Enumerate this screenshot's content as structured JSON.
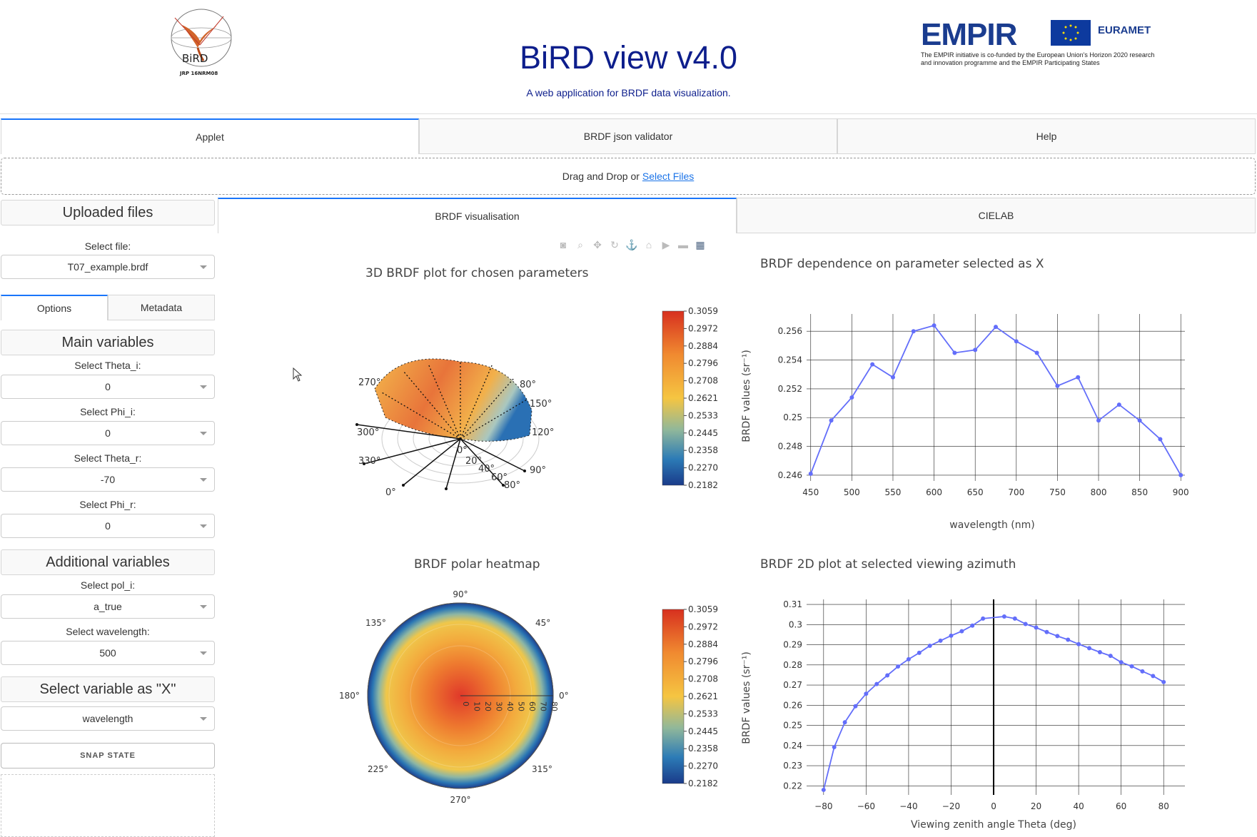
{
  "header": {
    "title": "BiRD view v4.0",
    "subtitle": "A web application for BRDF data visualization.",
    "logo_left_text": "BiRD",
    "logo_left_caption": "JRP 16NRM08",
    "logo_right_brand": "EMPIR",
    "logo_right_partner": "EURAMET",
    "logo_right_note": "The EMPIR initiative is co-funded by the European Union's Horizon 2020 research and innovation programme and the EMPIR Participating States"
  },
  "main_tabs": [
    "Applet",
    "BRDF json validator",
    "Help"
  ],
  "upload": {
    "text": "Drag and Drop or",
    "link": "Select Files"
  },
  "left": {
    "uploaded_files": "Uploaded files",
    "select_file_label": "Select file:",
    "select_file_value": "T07_example.brdf",
    "sub_tabs": [
      "Options",
      "Metadata"
    ],
    "main_variables": "Main variables",
    "theta_i_label": "Select Theta_i:",
    "theta_i_value": "0",
    "phi_i_label": "Select Phi_i:",
    "phi_i_value": "0",
    "theta_r_label": "Select Theta_r:",
    "theta_r_value": "-70",
    "phi_r_label": "Select Phi_r:",
    "phi_r_value": "0",
    "additional_variables": "Additional variables",
    "pol_i_label": "Select pol_i:",
    "pol_i_value": "a_true",
    "wavelength_label": "Select wavelength:",
    "wavelength_value": "500",
    "x_var_head": "Select variable as \"X\"",
    "x_var_value": "wavelength",
    "snap_button": "SNAP STATE"
  },
  "viz_tabs": [
    "BRDF visualisation",
    "CIELAB"
  ],
  "colorbar_ticks": [
    "0.3059",
    "0.2972",
    "0.2884",
    "0.2796",
    "0.2708",
    "0.2621",
    "0.2533",
    "0.2445",
    "0.2358",
    "0.2270",
    "0.2182"
  ],
  "plot3d": {
    "title": "3D BRDF plot for chosen parameters",
    "az_labels": [
      "270°",
      "300°",
      "330°",
      "0°",
      "150°",
      "120°",
      "90°",
      "80°"
    ],
    "r_labels": [
      "0°",
      "20°",
      "40°",
      "60°",
      "80°"
    ]
  },
  "heatmap": {
    "title": "BRDF polar heatmap",
    "angle_labels": [
      "90°",
      "45°",
      "0°",
      "315°",
      "270°",
      "225°",
      "180°",
      "135°"
    ],
    "radial_ticks": [
      "0",
      "10",
      "20",
      "30",
      "40",
      "50",
      "60",
      "70",
      "80"
    ]
  },
  "chart_data": [
    {
      "type": "line",
      "title": "BRDF dependence on parameter selected as X",
      "xlabel": "wavelength (nm)",
      "ylabel": "BRDF values (sr⁻¹)",
      "x": [
        450,
        475,
        500,
        525,
        550,
        575,
        600,
        625,
        650,
        675,
        700,
        725,
        750,
        775,
        800,
        825,
        850,
        875,
        900
      ],
      "y": [
        0.2461,
        0.2498,
        0.2514,
        0.2537,
        0.2528,
        0.256,
        0.2564,
        0.2545,
        0.2547,
        0.2563,
        0.2553,
        0.2545,
        0.2522,
        0.2528,
        0.2498,
        0.2509,
        0.2498,
        0.2485,
        0.246
      ],
      "xticks": [
        450,
        500,
        550,
        600,
        650,
        700,
        750,
        800,
        850,
        900
      ],
      "yticks": [
        0.246,
        0.248,
        0.25,
        0.252,
        0.254,
        0.256
      ],
      "ytick_labels": [
        "0.246",
        "0.248",
        "0.25",
        "0.252",
        "0.254",
        "0.256"
      ],
      "xlim": [
        445,
        905
      ],
      "ylim": [
        0.2456,
        0.2572
      ],
      "color": "#636efa"
    },
    {
      "type": "line",
      "title": "BRDF 2D plot at selected viewing azimuth",
      "xlabel": "Viewing zenith angle Theta (deg)",
      "ylabel": "BRDF values (sr⁻¹)",
      "x": [
        -80,
        -75,
        -70,
        -65,
        -60,
        -55,
        -50,
        -45,
        -40,
        -35,
        -30,
        -25,
        -20,
        -15,
        -10,
        -5,
        5,
        10,
        15,
        20,
        25,
        30,
        35,
        40,
        45,
        50,
        55,
        60,
        65,
        70,
        75,
        80
      ],
      "y": [
        0.218,
        0.2392,
        0.2515,
        0.2595,
        0.2657,
        0.2705,
        0.2748,
        0.2792,
        0.2828,
        0.286,
        0.2895,
        0.292,
        0.2945,
        0.2967,
        0.2995,
        0.303,
        0.304,
        0.303,
        0.3003,
        0.2985,
        0.2963,
        0.2943,
        0.2925,
        0.2903,
        0.2883,
        0.2863,
        0.2845,
        0.2813,
        0.2793,
        0.2768,
        0.2745,
        0.2715
      ],
      "xticks": [
        -80,
        -60,
        -40,
        -20,
        0,
        20,
        40,
        60,
        80
      ],
      "xtick_labels": [
        "−80",
        "−60",
        "−40",
        "−20",
        "0",
        "20",
        "40",
        "60",
        "80"
      ],
      "yticks": [
        0.22,
        0.23,
        0.24,
        0.25,
        0.26,
        0.27,
        0.28,
        0.29,
        0.3,
        0.31
      ],
      "ytick_labels": [
        "0.22",
        "0.23",
        "0.24",
        "0.25",
        "0.26",
        "0.27",
        "0.28",
        "0.29",
        "0.3",
        "0.31"
      ],
      "xlim": [
        -88,
        90
      ],
      "ylim": [
        0.2155,
        0.3125
      ],
      "color": "#636efa"
    }
  ]
}
